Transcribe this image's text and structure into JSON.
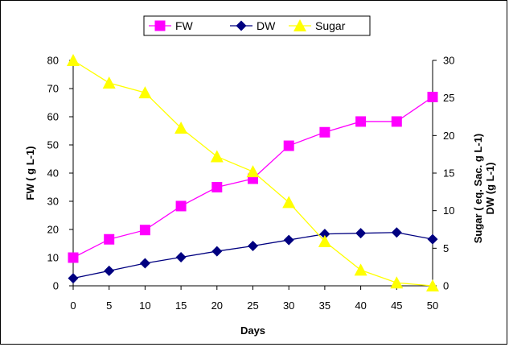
{
  "chart_data": {
    "type": "line",
    "x": [
      0,
      5,
      10,
      15,
      20,
      25,
      30,
      35,
      40,
      45,
      50
    ],
    "xlabel": "Days",
    "ylabel_left": "FW ( g L-1)",
    "ylabel_right_1": "Sugar ( eq. Sac.  g L-1)",
    "ylabel_right_2": "DW (g L-1)",
    "ylim_left": [
      0,
      80
    ],
    "yticks_left": [
      0,
      10,
      20,
      30,
      40,
      50,
      60,
      70,
      80
    ],
    "ylim_right": [
      0,
      30
    ],
    "yticks_right": [
      0,
      5,
      10,
      15,
      20,
      25,
      30
    ],
    "grid": false,
    "legend_position": "top-center",
    "series": [
      {
        "name": "FW",
        "axis": "left",
        "marker": "square",
        "color": "#FF00FF",
        "values": [
          10,
          16.5,
          19.8,
          28.3,
          35,
          38,
          49.7,
          54.5,
          58.3,
          58.3,
          67
        ]
      },
      {
        "name": "DW",
        "axis": "right",
        "marker": "diamond",
        "color": "#000080",
        "values": [
          1,
          2,
          3,
          3.8,
          4.6,
          5.3,
          6.1,
          6.9,
          7,
          7.1,
          6.2
        ]
      },
      {
        "name": "Sugar",
        "axis": "right",
        "marker": "triangle",
        "color": "#FFFF00",
        "values": [
          30,
          27,
          25.7,
          21,
          17.2,
          15.2,
          11.1,
          5.9,
          2.1,
          0.4,
          0
        ]
      }
    ]
  }
}
